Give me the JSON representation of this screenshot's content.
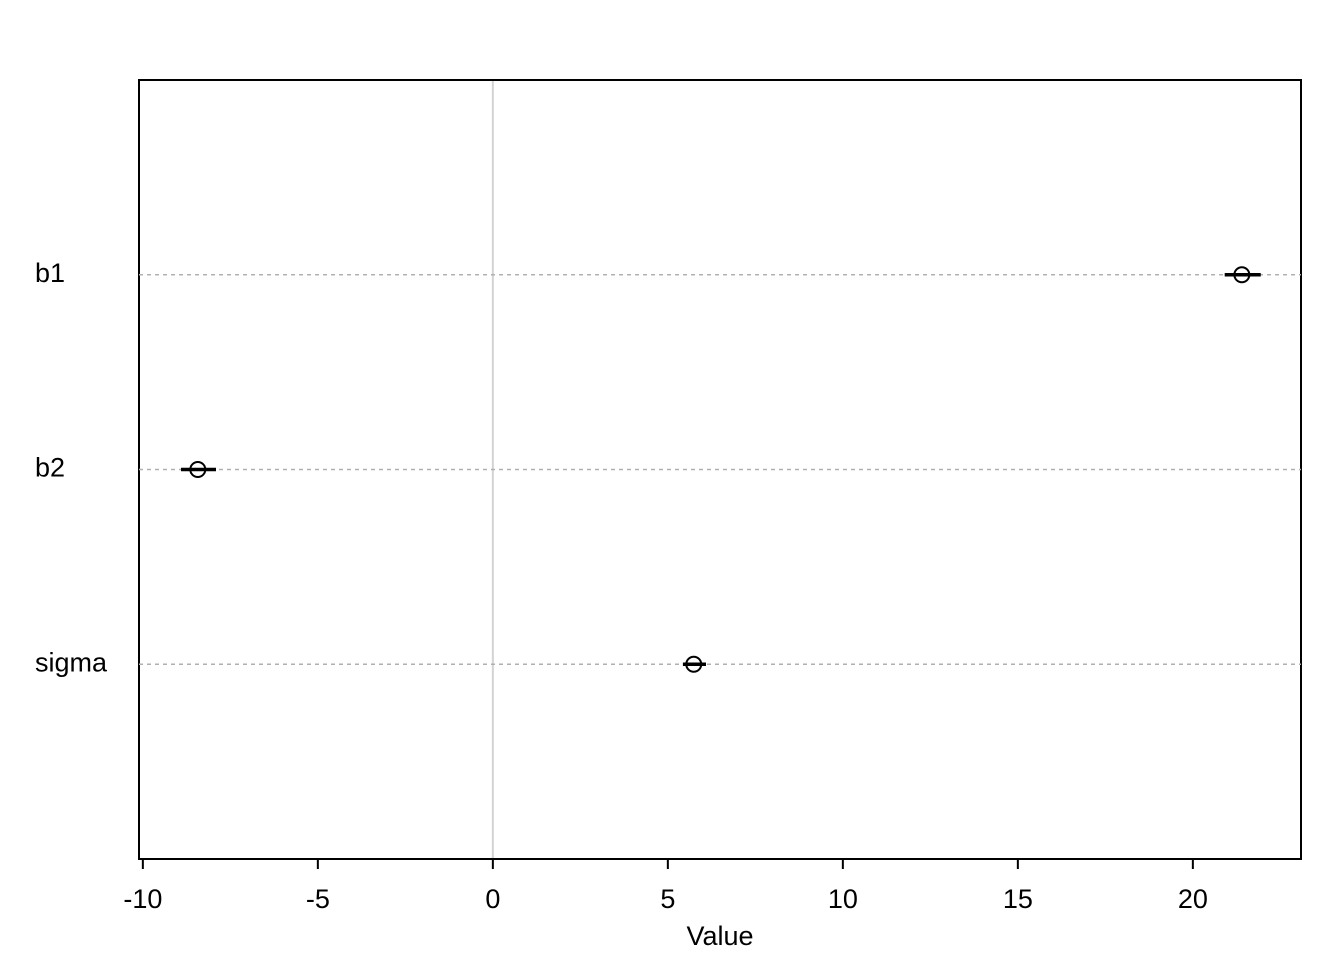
{
  "chart_data": {
    "type": "dot",
    "categories": [
      "b1",
      "b2",
      "sigma"
    ],
    "values": [
      21.4,
      -8.43,
      5.74
    ],
    "lower": [
      20.91,
      -8.91,
      5.43
    ],
    "upper": [
      21.94,
      -7.91,
      6.09
    ],
    "x_label": "Value",
    "xlim": [
      -10.11,
      23.09
    ],
    "xticks": [
      -10,
      -5,
      0,
      5,
      10,
      15,
      20
    ],
    "reference_line": 0,
    "color": "#000000",
    "grid": true
  }
}
